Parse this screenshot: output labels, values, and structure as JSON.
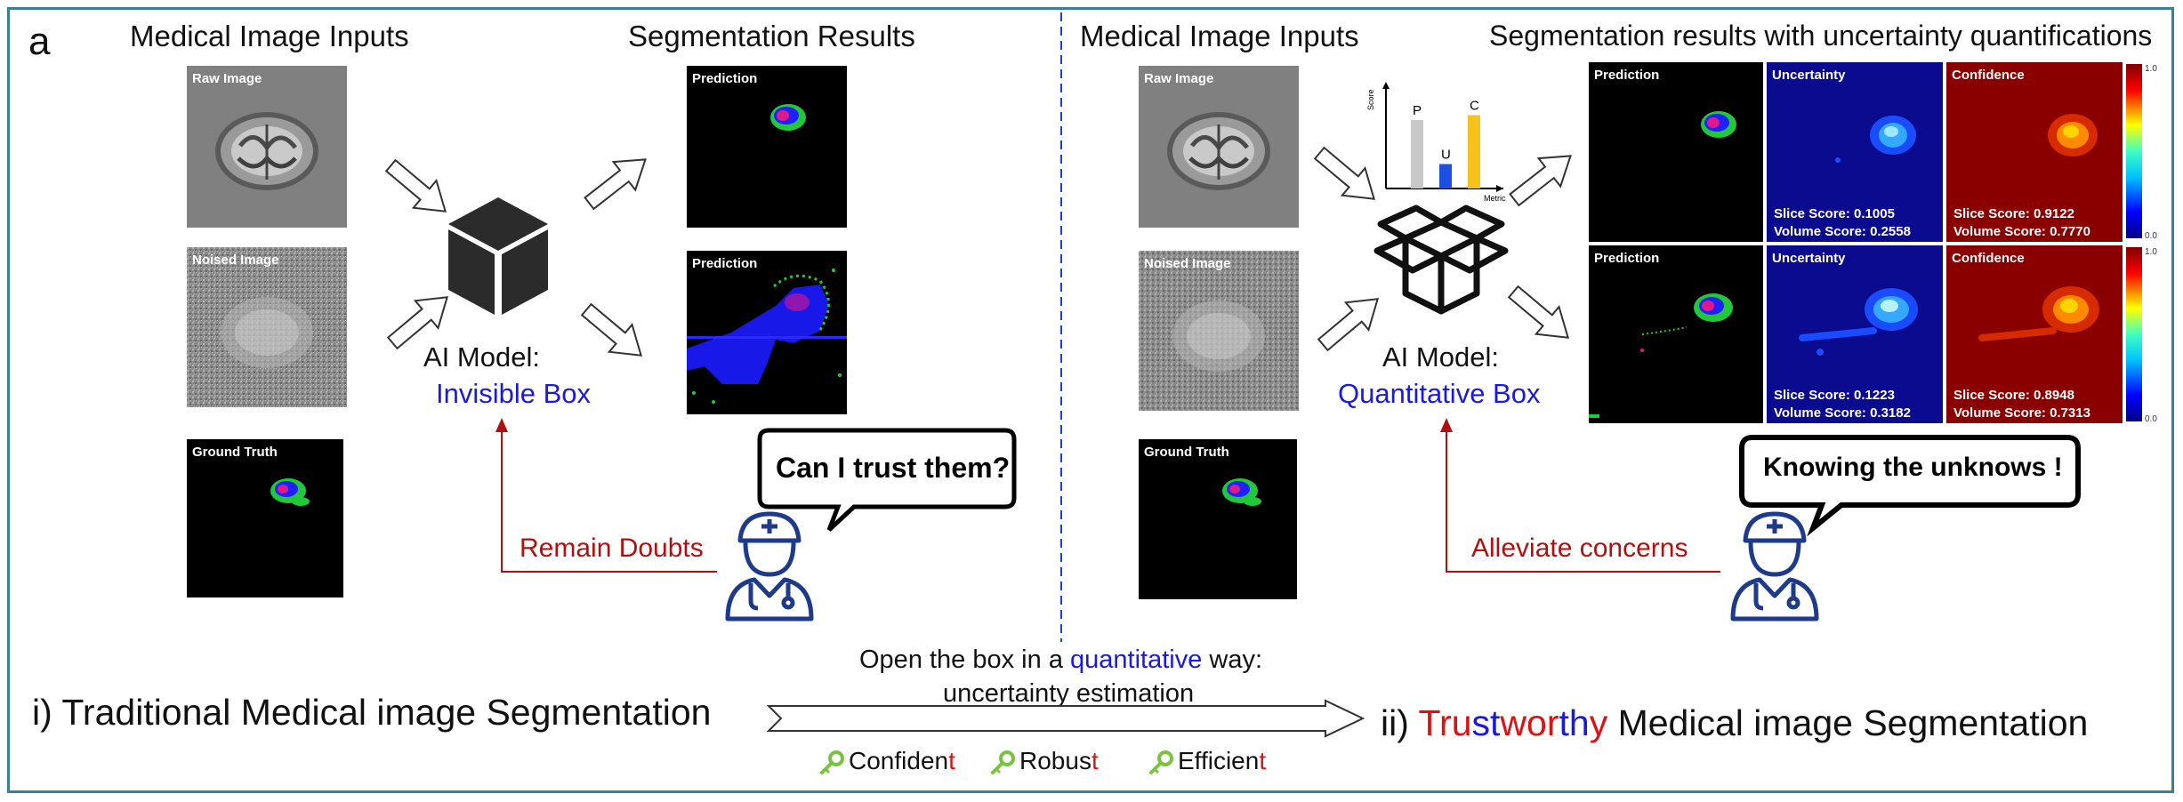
{
  "panel_letter": "a",
  "left": {
    "inputs_title": "Medical Image Inputs",
    "results_title": "Segmentation Results",
    "inputs": [
      "Raw Image",
      "Noised Image",
      "Ground Truth"
    ],
    "results": [
      "Prediction",
      "Prediction"
    ],
    "model_label": "AI Model:",
    "model_name": "Invisible Box",
    "bubble": "Can I trust them?",
    "feedback": "Remain Doubts",
    "caption": "i) Traditional Medical image Segmentation"
  },
  "right": {
    "inputs_title": "Medical Image Inputs",
    "results_title": "Segmentation results with uncertainty quantifications",
    "inputs": [
      "Raw Image",
      "Noised Image",
      "Ground Truth"
    ],
    "model_label": "AI Model:",
    "model_name": "Quantitative Box",
    "chart": {
      "y_label": "Score",
      "x_label": "Metric",
      "bars": [
        {
          "label": "P",
          "value": 0.7,
          "color": "#c8c8c8"
        },
        {
          "label": "U",
          "value": 0.25,
          "color": "#1f4fe0"
        },
        {
          "label": "C",
          "value": 0.75,
          "color": "#f6c21c"
        }
      ]
    },
    "colorbar": {
      "max": "1.0",
      "min": "0.0"
    },
    "rows": [
      {
        "prediction": "Prediction",
        "uncertainty": "Uncertainty",
        "confidence": "Confidence",
        "u_slice": "Slice Score: 0.1005",
        "u_volume": "Volume Score: 0.2558",
        "c_slice": "Slice Score: 0.9122",
        "c_volume": "Volume Score: 0.7770"
      },
      {
        "prediction": "Prediction",
        "uncertainty": "Uncertainty",
        "confidence": "Confidence",
        "u_slice": "Slice Score: 0.1223",
        "u_volume": "Volume Score: 0.3182",
        "c_slice": "Slice Score: 0.8948",
        "c_volume": "Volume Score: 0.7313"
      }
    ],
    "bubble": "Knowing the unknows !",
    "feedback": "Alleviate concerns",
    "caption_parts": [
      {
        "text": "ii) ",
        "color": "#111111"
      },
      {
        "text": "Tru",
        "color": "#e01010"
      },
      {
        "text": "st",
        "color": "#1a1adf"
      },
      {
        "text": "wor",
        "color": "#e01010"
      },
      {
        "text": "th",
        "color": "#1a1adf"
      },
      {
        "text": "y",
        "color": "#e01010"
      },
      {
        "text": " Medical image Segmentation",
        "color": "#111111"
      }
    ]
  },
  "middle": {
    "line1_pre": "Open the box in a ",
    "line1_keyword": "quantitative",
    "line1_post": " way:",
    "line2": "uncertainty estimation",
    "keywords": [
      {
        "stem": "Confiden",
        "accent": "t"
      },
      {
        "stem": "Robus",
        "accent": "t"
      },
      {
        "stem": "Efficien",
        "accent": "t"
      }
    ]
  }
}
